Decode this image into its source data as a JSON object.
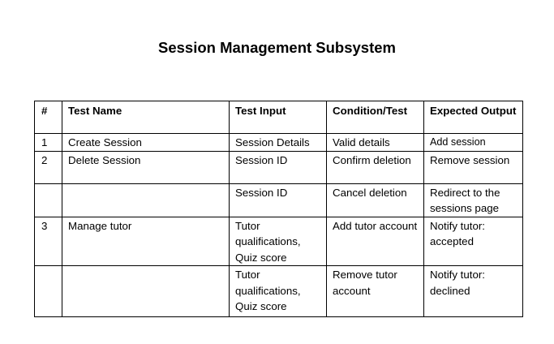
{
  "document": {
    "title": "Session Management Subsystem"
  },
  "table": {
    "headers": {
      "num": "#",
      "name": "Test Name",
      "input": "Test Input",
      "condition": "Condition/Test",
      "expected": "Expected Output"
    },
    "rows": [
      {
        "num": "1",
        "name": "Create Session",
        "input": "Session Details",
        "condition": "Valid details",
        "expected": "Add session"
      },
      {
        "num": "2",
        "name": "Delete Session",
        "input": "Session ID",
        "condition": "Confirm deletion",
        "expected": "Remove session"
      },
      {
        "num": "",
        "name": "",
        "input": "Session ID",
        "condition": "Cancel deletion",
        "expected": "Redirect to the sessions page"
      },
      {
        "num": "3",
        "name": "Manage tutor",
        "input": "Tutor qualifications, Quiz score",
        "condition": "Add tutor account",
        "expected": "Notify tutor: accepted"
      },
      {
        "num": "",
        "name": "",
        "input": "Tutor qualifications, Quiz score",
        "condition": "Remove tutor account",
        "expected": "Notify tutor: declined"
      }
    ]
  }
}
